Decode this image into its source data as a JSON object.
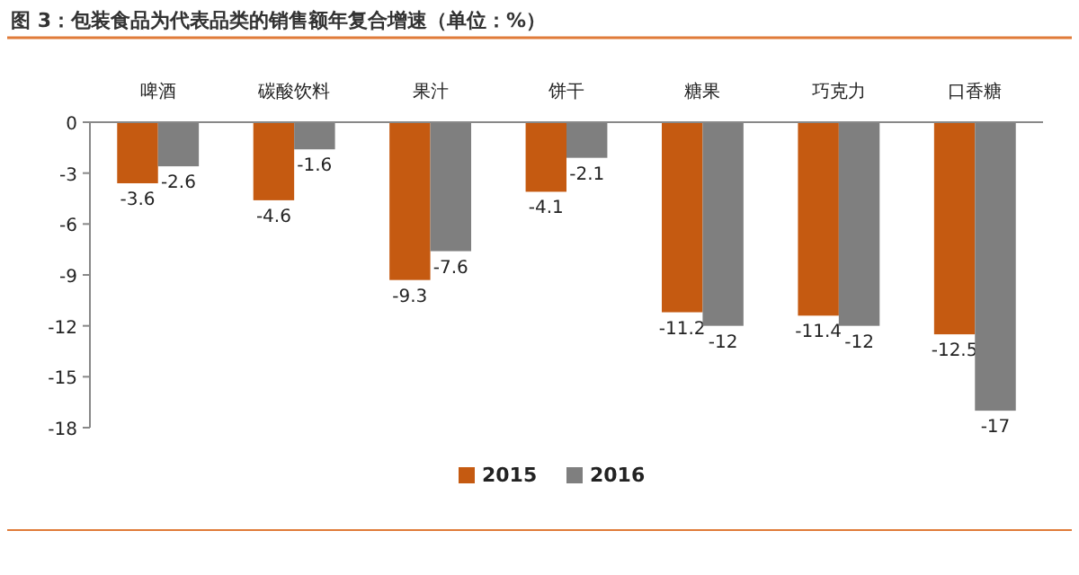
{
  "chart_data": {
    "type": "bar",
    "title": "图 3：包装食品为代表品类的销售额年复合增速（单位：%）",
    "categories": [
      "啤酒",
      "碳酸饮料",
      "果汁",
      "饼干",
      "糖果",
      "巧克力",
      "口香糖"
    ],
    "series": [
      {
        "name": "2015",
        "color": "#c55a11",
        "values": [
          -3.6,
          -4.6,
          -9.3,
          -4.1,
          -11.2,
          -11.4,
          -12.5
        ]
      },
      {
        "name": "2016",
        "color": "#7f7f7f",
        "values": [
          -2.6,
          -1.6,
          -7.6,
          -2.1,
          -12,
          -12,
          -17
        ]
      }
    ],
    "ylim": [
      -18,
      0
    ],
    "yticks": [
      0,
      -3,
      -6,
      -9,
      -12,
      -15,
      -18
    ],
    "data_labels": true,
    "legend": "bottom"
  }
}
